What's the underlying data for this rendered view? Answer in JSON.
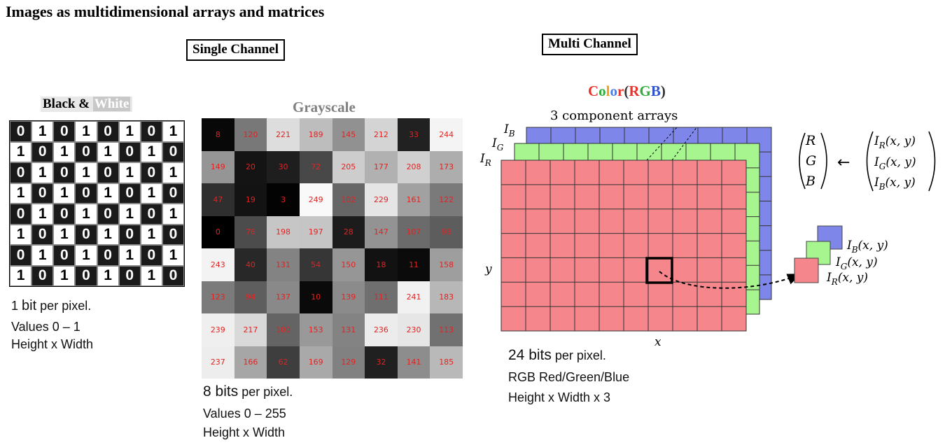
{
  "title": "Images as multidimensional arrays and matrices",
  "single_channel_label": "Single Channel",
  "multi_channel_label": "Multi Channel",
  "bw": {
    "title_black": "Black &",
    "title_white": "White",
    "rows": [
      [
        "0",
        "1",
        "0",
        "1",
        "0",
        "1",
        "0",
        "1"
      ],
      [
        "1",
        "0",
        "1",
        "0",
        "1",
        "0",
        "1",
        "0"
      ],
      [
        "0",
        "1",
        "0",
        "1",
        "0",
        "1",
        "0",
        "1"
      ],
      [
        "1",
        "0",
        "1",
        "0",
        "1",
        "0",
        "1",
        "0"
      ],
      [
        "0",
        "1",
        "0",
        "1",
        "0",
        "1",
        "0",
        "1"
      ],
      [
        "1",
        "0",
        "1",
        "0",
        "1",
        "0",
        "1",
        "0"
      ],
      [
        "0",
        "1",
        "0",
        "1",
        "0",
        "1",
        "0",
        "1"
      ],
      [
        "1",
        "0",
        "1",
        "0",
        "1",
        "0",
        "1",
        "0"
      ]
    ],
    "caption_line1_num": "1",
    "caption_line1_unit": "bit",
    "caption_line1_rest": "per pixel.",
    "caption_line2": "Values 0 – 1",
    "caption_line3": "Height x Width"
  },
  "grayscale": {
    "title": "Grayscale",
    "rows": [
      [
        8,
        120,
        221,
        189,
        145,
        212,
        33,
        244
      ],
      [
        149,
        20,
        30,
        72,
        205,
        177,
        208,
        173
      ],
      [
        47,
        19,
        3,
        249,
        102,
        229,
        161,
        122
      ],
      [
        0,
        76,
        198,
        197,
        28,
        147,
        107,
        93
      ],
      [
        243,
        40,
        131,
        54,
        150,
        18,
        11,
        158
      ],
      [
        123,
        94,
        137,
        10,
        139,
        111,
        241,
        183
      ],
      [
        239,
        217,
        100,
        153,
        131,
        236,
        230,
        113
      ],
      [
        237,
        166,
        62,
        169,
        129,
        32,
        141,
        185
      ]
    ],
    "caption_line1_big": "8 bits",
    "caption_line1_rest": "per pixel.",
    "caption_line2": "Values 0 – 255",
    "caption_line3": "Height x Width"
  },
  "rgb": {
    "title_letters": [
      {
        "ch": "C",
        "color": "#e8342c"
      },
      {
        "ch": "o",
        "color": "#2eae3a"
      },
      {
        "ch": "l",
        "color": "#f0a020"
      },
      {
        "ch": "o",
        "color": "#4a7ee0"
      },
      {
        "ch": "r",
        "color": "#e8342c"
      },
      {
        "ch": "(",
        "color": "#333333"
      },
      {
        "ch": "R",
        "color": "#e8342c"
      },
      {
        "ch": "G",
        "color": "#2eae3a"
      },
      {
        "ch": "B",
        "color": "#3355cc"
      },
      {
        "ch": ")",
        "color": "#333333"
      }
    ],
    "component_label": "3 component arrays",
    "I": "I",
    "sub_B": "B",
    "sub_G": "G",
    "sub_R": "R",
    "xy": "(x, y)",
    "y_label": "y",
    "x_label": "x",
    "vec_R": "R",
    "vec_G": "G",
    "vec_B": "B",
    "arrow": "←",
    "caption_line1_big": "24 bits",
    "caption_line1_rest": "per pixel.",
    "caption_line2": "RGB Red/Green/Blue",
    "caption_line3": "Height x Width x 3",
    "colors": {
      "red": "#f5868c",
      "green": "#a6f58e",
      "blue": "#7f86ea"
    }
  }
}
